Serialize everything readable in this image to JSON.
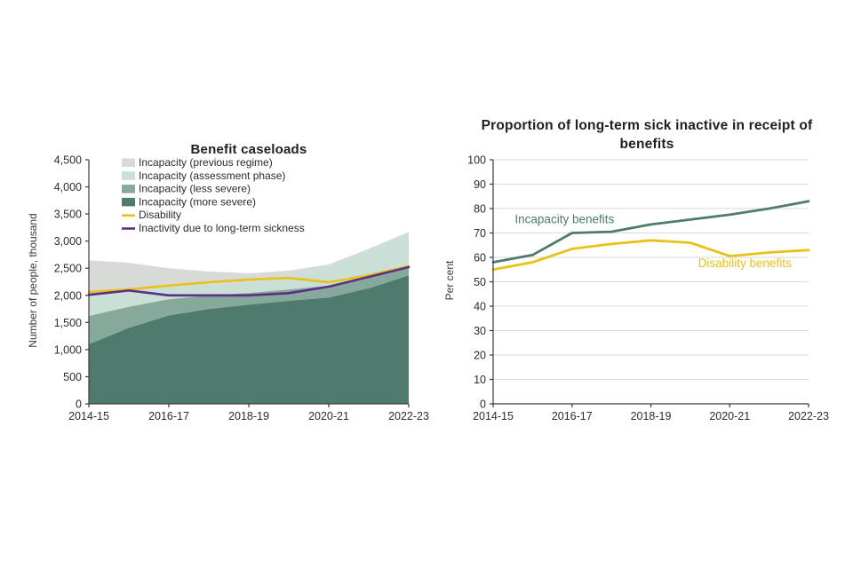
{
  "colors": {
    "dark_teal": "#4e7b6e",
    "medium_teal": "#87a99b",
    "light_teal": "#cadfd6",
    "grey": "#d8dad8",
    "yellow": "#e7c317",
    "purple": "#5c2e87",
    "axis": "#3a3a3a",
    "grid": "#d9d9d9",
    "text": "#2b2b2b"
  },
  "chart_data": [
    {
      "type": "area",
      "title": "Benefit caseloads",
      "ylabel": "Number of people, thousand",
      "x": [
        "2014-15",
        "2015-16",
        "2016-17",
        "2017-18",
        "2018-19",
        "2019-20",
        "2020-21",
        "2021-22",
        "2022-23"
      ],
      "x_tick_indices": [
        0,
        2,
        4,
        6,
        8
      ],
      "ylim": [
        0,
        4500
      ],
      "ytick_step": 500,
      "grid": false,
      "legend_position": "top-left-inside",
      "stack_series": [
        {
          "name": "Incapacity (more severe)",
          "color_key": "dark_teal",
          "values": [
            1100,
            1400,
            1630,
            1750,
            1830,
            1900,
            1960,
            2130,
            2370
          ]
        },
        {
          "name": "Incapacity (less severe)",
          "color_key": "medium_teal",
          "values": [
            520,
            390,
            300,
            250,
            215,
            210,
            220,
            200,
            130
          ]
        },
        {
          "name": "Incapacity (assessment phase)",
          "color_key": "light_teal",
          "values": [
            425,
            320,
            230,
            200,
            195,
            230,
            360,
            500,
            660
          ]
        },
        {
          "name": "Incapacity (previous regime)",
          "color_key": "grey",
          "values": [
            605,
            490,
            340,
            240,
            165,
            115,
            30,
            30,
            10
          ]
        }
      ],
      "line_series": [
        {
          "name": "Disability",
          "color_key": "yellow",
          "values": [
            2060,
            2110,
            2180,
            2240,
            2290,
            2320,
            2240,
            2370,
            2540
          ]
        },
        {
          "name": "Inactivity due to long-term sickness",
          "color_key": "purple",
          "values": [
            2010,
            2090,
            2000,
            2000,
            2000,
            2040,
            2160,
            2340,
            2520
          ]
        }
      ],
      "legend": [
        {
          "label": "Incapacity (previous regime)",
          "swatch": "rect",
          "color_key": "grey"
        },
        {
          "label": "Incapacity (assessment phase)",
          "swatch": "rect",
          "color_key": "light_teal"
        },
        {
          "label": "Incapacity (less severe)",
          "swatch": "rect",
          "color_key": "medium_teal"
        },
        {
          "label": "Incapacity (more severe)",
          "swatch": "rect",
          "color_key": "dark_teal"
        },
        {
          "label": "Disability",
          "swatch": "line",
          "color_key": "yellow"
        },
        {
          "label": "Inactivity due to long-term sickness",
          "swatch": "line",
          "color_key": "purple"
        }
      ]
    },
    {
      "type": "line",
      "title": "Proportion of long-term sick inactive in receipt of benefits",
      "ylabel": "Per cent",
      "x": [
        "2014-15",
        "2015-16",
        "2016-17",
        "2017-18",
        "2018-19",
        "2019-20",
        "2020-21",
        "2021-22",
        "2022-23"
      ],
      "x_tick_indices": [
        0,
        2,
        4,
        6,
        8
      ],
      "ylim": [
        0,
        100
      ],
      "ytick_step": 10,
      "grid": true,
      "series": [
        {
          "name": "Incapacity benefits",
          "color_key": "dark_teal",
          "values": [
            58,
            61,
            70,
            70.5,
            73.5,
            75.5,
            77.5,
            80,
            83
          ]
        },
        {
          "name": "Disability benefits",
          "color_key": "yellow",
          "values": [
            55,
            58,
            63.5,
            65.5,
            67,
            66,
            60.5,
            62,
            63
          ]
        }
      ],
      "annotations": [
        {
          "text": "Incapacity benefits",
          "x_index": 0.55,
          "y_value": 74,
          "color_key": "dark_teal",
          "anchor": "start"
        },
        {
          "text": "Disability benefits",
          "x_index": 5.2,
          "y_value": 56,
          "color_key": "yellow",
          "anchor": "start"
        }
      ]
    }
  ]
}
